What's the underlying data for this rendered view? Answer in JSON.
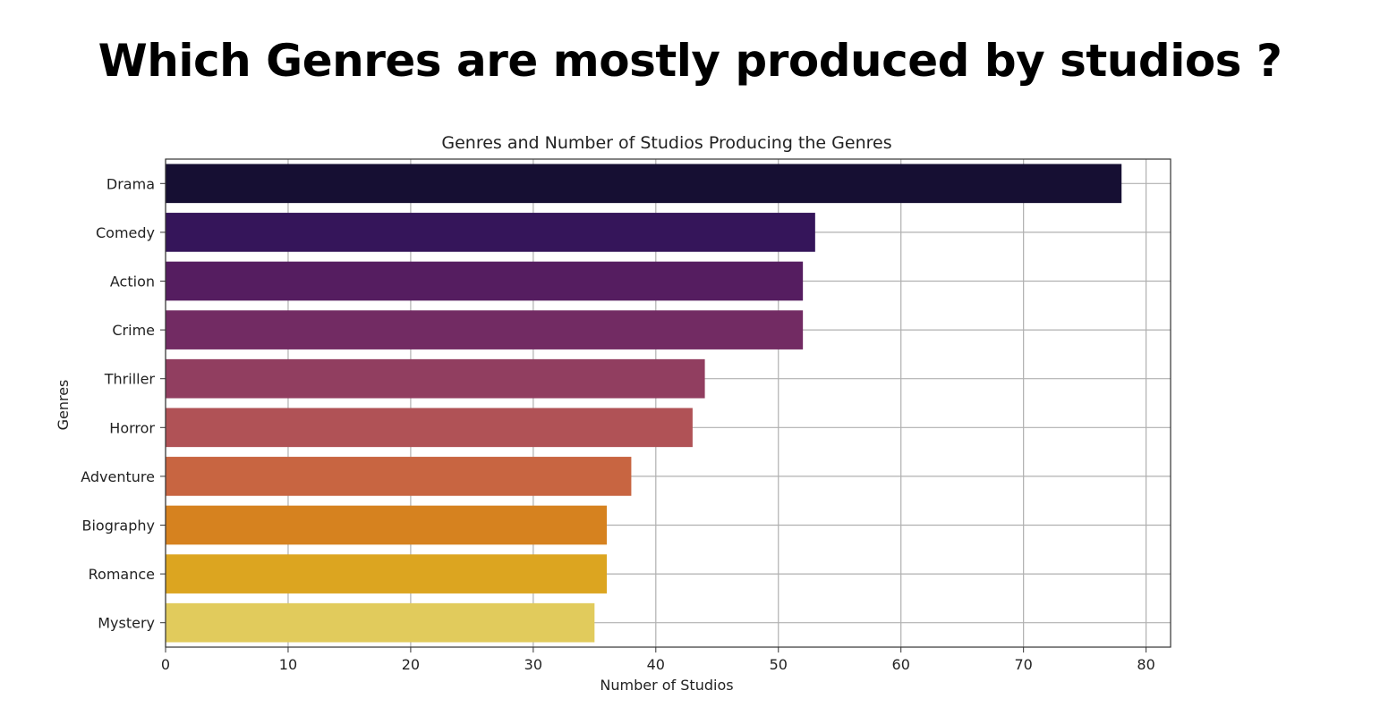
{
  "headline": "Which Genres are mostly produced by studios ?",
  "chart_data": {
    "type": "bar",
    "orientation": "horizontal",
    "title": "Genres and Number of Studios Producing the Genres",
    "xlabel": "Number of Studios",
    "ylabel": "Genres",
    "categories": [
      "Drama",
      "Comedy",
      "Action",
      "Crime",
      "Thriller",
      "Horror",
      "Adventure",
      "Biography",
      "Romance",
      "Mystery"
    ],
    "values": [
      78,
      53,
      52,
      52,
      44,
      43,
      38,
      36,
      36,
      35
    ],
    "colors": [
      "#160f33",
      "#35155a",
      "#551d60",
      "#722b63",
      "#913e60",
      "#b05256",
      "#c86541",
      "#d6821f",
      "#dca520",
      "#e1cb5c"
    ],
    "xlim": [
      0,
      82
    ],
    "xticks": [
      0,
      10,
      20,
      30,
      40,
      50,
      60,
      70,
      80
    ],
    "grid": true
  }
}
